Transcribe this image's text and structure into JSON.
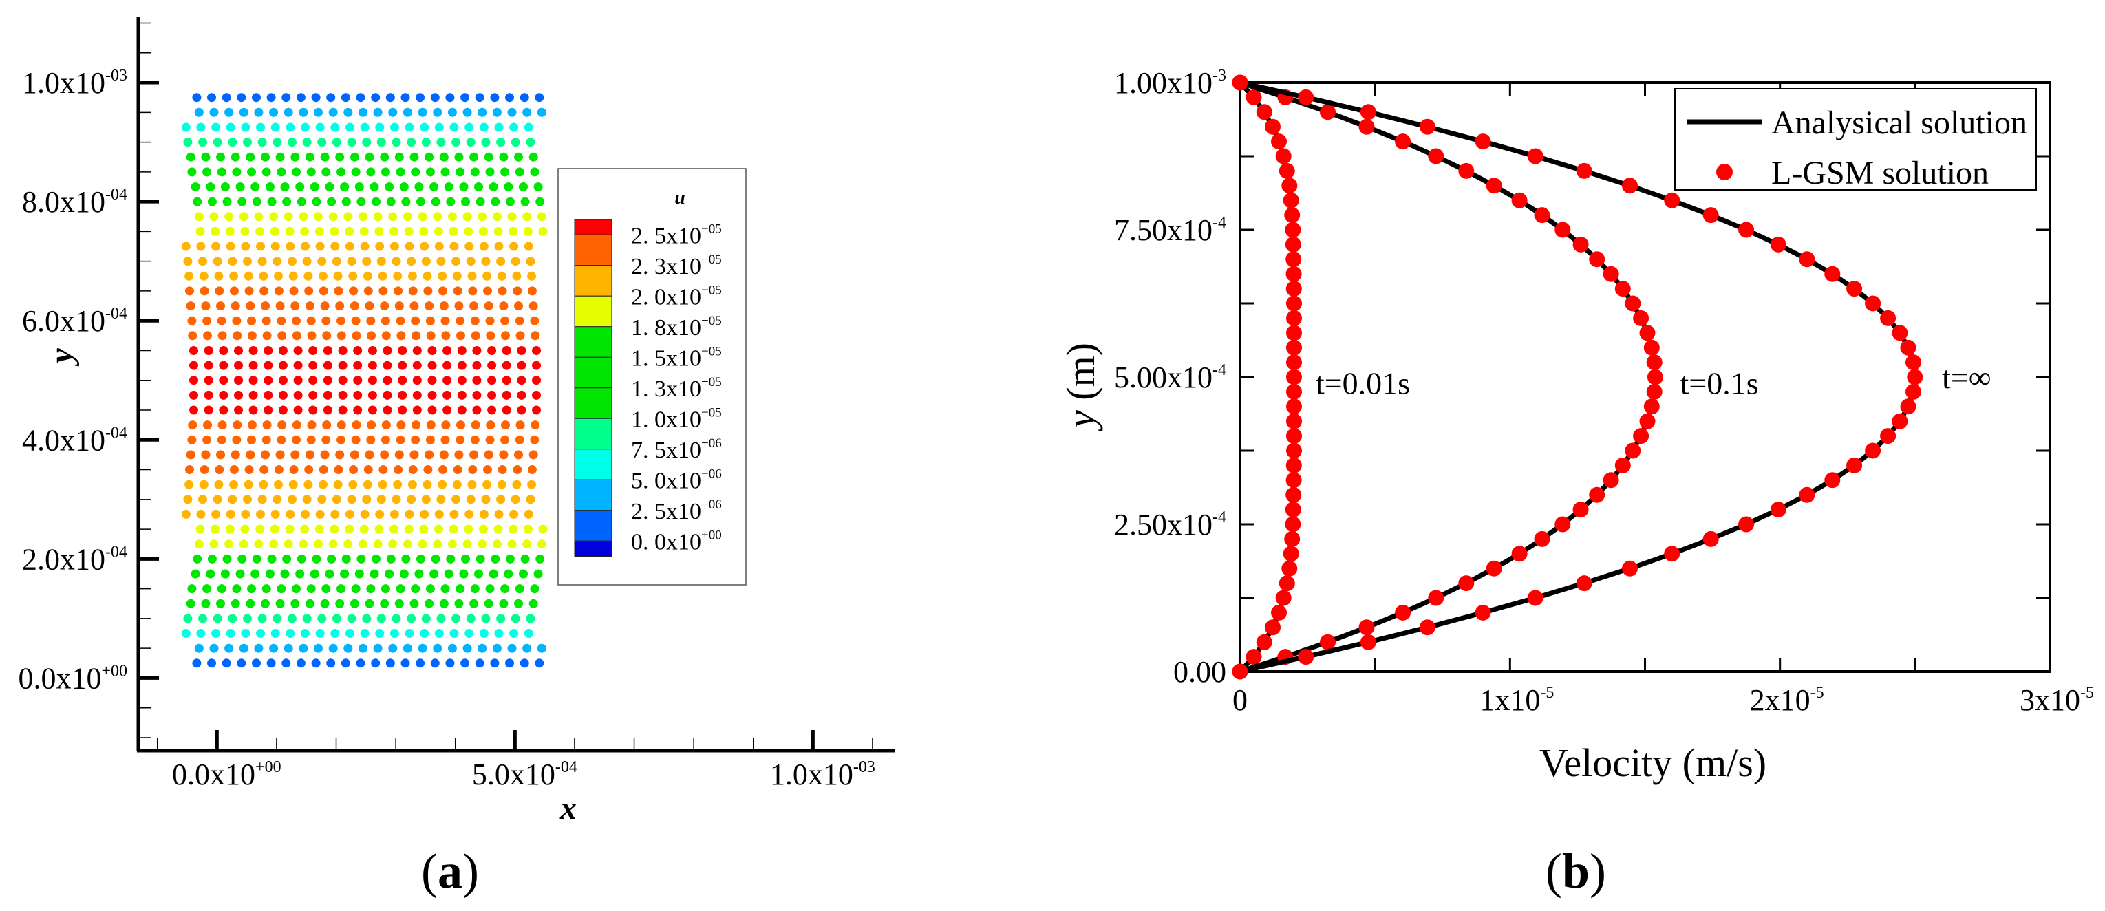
{
  "captions": {
    "a": {
      "open": "(",
      "label": "a",
      "close": ")"
    },
    "b": {
      "open": "(",
      "label": "b",
      "close": ")"
    }
  },
  "chart_data": [
    {
      "type": "scatter",
      "xlabel": "x",
      "ylabel": "y",
      "xlim": [
        -0.000132,
        0.001137
      ],
      "ylim": [
        -0.000122,
        0.001111
      ],
      "grid": false,
      "x_ticks": [
        {
          "value": 0,
          "base": "0.0x10",
          "exp": "+00"
        },
        {
          "value": 0.0005,
          "base": "5.0x10",
          "exp": "-04"
        },
        {
          "value": 0.001,
          "base": "1.0x10",
          "exp": "-03"
        }
      ],
      "x_minor_step": 0.0001,
      "y_ticks": [
        {
          "value": 0,
          "base": "0.0x10",
          "exp": "+00"
        },
        {
          "value": 0.0002,
          "base": "2.0x10",
          "exp": "-04"
        },
        {
          "value": 0.0004,
          "base": "4.0x10",
          "exp": "-04"
        },
        {
          "value": 0.0006,
          "base": "6.0x10",
          "exp": "-04"
        },
        {
          "value": 0.0008,
          "base": "8.0x10",
          "exp": "-04"
        },
        {
          "value": 0.001,
          "base": "1.0x10",
          "exp": "-03"
        }
      ],
      "y_minor_step": 5e-05,
      "legend": {
        "title": "u",
        "position": "right",
        "levels": [
          {
            "value": 2.5e-05,
            "base": "2. 5x10",
            "exp": "−05"
          },
          {
            "value": 2.25e-05,
            "base": "2. 3x10",
            "exp": "−05"
          },
          {
            "value": 2e-05,
            "base": "2. 0x10",
            "exp": "−05"
          },
          {
            "value": 1.75e-05,
            "base": "1. 8x10",
            "exp": "−05"
          },
          {
            "value": 1.5e-05,
            "base": "1. 5x10",
            "exp": "−05"
          },
          {
            "value": 1.25e-05,
            "base": "1. 3x10",
            "exp": "−05"
          },
          {
            "value": 1e-05,
            "base": "1. 0x10",
            "exp": "−05"
          },
          {
            "value": 7.5e-06,
            "base": "7. 5x10",
            "exp": "−06"
          },
          {
            "value": 5e-06,
            "base": "5. 0x10",
            "exp": "−06"
          },
          {
            "value": 2.5e-06,
            "base": "2. 5x10",
            "exp": "−06"
          },
          {
            "value": 0,
            "base": "0. 0x10",
            "exp": "+00"
          }
        ],
        "colors_bottom_to_top": [
          "#0000dc",
          "#0064ff",
          "#00b4ff",
          "#00ffe6",
          "#00ff8c",
          "#00e600",
          "#00e600",
          "#00e600",
          "#e6ff00",
          "#ffb400",
          "#ff6400",
          "#ff0000"
        ]
      },
      "points": {
        "dx": 2.5e-05,
        "columns": 24,
        "row_y": [
          2.5e-05,
          5e-05,
          7.5e-05,
          0.0001,
          0.000125,
          0.00015,
          0.000175,
          0.0002,
          0.000225,
          0.00025,
          0.000275,
          0.0003,
          0.000325,
          0.00035,
          0.000375,
          0.0004,
          0.000425,
          0.00045,
          0.000475,
          0.0005,
          0.000525,
          0.00055,
          0.000575,
          0.0006,
          0.000625,
          0.00065,
          0.000675,
          0.0007,
          0.000725,
          0.00075,
          0.000775,
          0.0008,
          0.000825,
          0.00085,
          0.000875,
          0.0009,
          0.000925,
          0.00095,
          0.000975
        ],
        "row_x_start": [
          -3.4e-05,
          -3e-05,
          -5.2e-05,
          -4.9e-05,
          -4.4e-05,
          -4.2e-05,
          -3.6e-05,
          -3.3e-05,
          -3e-05,
          -2.8e-05,
          -5.2e-05,
          -4.9e-05,
          -4.7e-05,
          -4.6e-05,
          -4.4e-05,
          -4.2e-05,
          -4.1e-05,
          -3.9e-05,
          -3.9e-05,
          -3.9e-05,
          -3.9e-05,
          -3.9e-05,
          -4.1e-05,
          -4.2e-05,
          -4.4e-05,
          -4.6e-05,
          -4.7e-05,
          -4.9e-05,
          -5.2e-05,
          -2.8e-05,
          -3e-05,
          -3.3e-05,
          -3.6e-05,
          -4.2e-05,
          -4.4e-05,
          -4.9e-05,
          -5.2e-05,
          -3e-05,
          -3.4e-05
        ],
        "row_level": [
          1,
          2,
          3,
          4,
          5,
          5,
          5,
          5,
          8,
          8,
          9,
          9,
          9,
          10,
          10,
          10,
          10,
          11,
          11,
          11,
          11,
          11,
          10,
          10,
          10,
          10,
          9,
          9,
          9,
          8,
          8,
          5,
          5,
          5,
          5,
          4,
          3,
          2,
          1
        ]
      }
    },
    {
      "type": "line",
      "xlabel": "Velocity (m/s)",
      "ylabel": {
        "var": "y",
        "unit": " (m)"
      },
      "xlim": [
        0,
        3e-05
      ],
      "ylim": [
        0,
        0.001
      ],
      "grid": false,
      "x_ticks": [
        {
          "value": 0,
          "base": "0",
          "exp": ""
        },
        {
          "value": 1e-05,
          "base": "1x10",
          "exp": "-5"
        },
        {
          "value": 2e-05,
          "base": "2x10",
          "exp": "-5"
        },
        {
          "value": 3e-05,
          "base": "3x10",
          "exp": "-5"
        }
      ],
      "x_minor_step": 5e-06,
      "y_ticks": [
        {
          "value": 0,
          "base": "0.00",
          "exp": ""
        },
        {
          "value": 0.00025,
          "base": "2.50x10",
          "exp": "-4"
        },
        {
          "value": 0.0005,
          "base": "5.00x10",
          "exp": "-4"
        },
        {
          "value": 0.00075,
          "base": "7.50x10",
          "exp": "-4"
        },
        {
          "value": 0.001,
          "base": "1.00x10",
          "exp": "-3"
        }
      ],
      "y_minor_step": 0.000125,
      "legend": {
        "position": "top-right",
        "entries": [
          {
            "label": "Analysical solution",
            "style": "line",
            "color": "#000000"
          },
          {
            "label": "L-GSM solution",
            "style": "marker",
            "color": "#ff0000"
          }
        ]
      },
      "y": [
        0,
        2.5e-05,
        5e-05,
        7.5e-05,
        0.0001,
        0.000125,
        0.00015,
        0.000175,
        0.0002,
        0.000225,
        0.00025,
        0.000275,
        0.0003,
        0.000325,
        0.00035,
        0.000375,
        0.0004,
        0.000425,
        0.00045,
        0.000475,
        0.0005,
        0.000525,
        0.00055,
        0.000575,
        0.0006,
        0.000625,
        0.00065,
        0.000675,
        0.0007,
        0.000725,
        0.00075,
        0.000775,
        0.0008,
        0.000825,
        0.00085,
        0.000875,
        0.0009,
        0.000925,
        0.00095,
        0.000975,
        0.001
      ],
      "series": [
        {
          "label": "t=0.01s",
          "label_at": {
            "x": 2.8e-06,
            "y": 0.00049
          },
          "x": [
            0,
            5.1e-07,
            9e-07,
            1.21e-06,
            1.44e-06,
            1.61e-06,
            1.74e-06,
            1.83e-06,
            1.89e-06,
            1.93e-06,
            1.96e-06,
            1.97e-06,
            1.98e-06,
            1.99e-06,
            1.995e-06,
            2e-06,
            2e-06,
            2e-06,
            2e-06,
            2e-06,
            2e-06,
            2e-06,
            2e-06,
            2e-06,
            2e-06,
            2e-06,
            1.995e-06,
            1.99e-06,
            1.98e-06,
            1.97e-06,
            1.96e-06,
            1.93e-06,
            1.89e-06,
            1.83e-06,
            1.74e-06,
            1.61e-06,
            1.44e-06,
            1.21e-06,
            9e-07,
            5.1e-07,
            0
          ]
        },
        {
          "label": "t=0.1s",
          "label_at": {
            "x": 1.63e-05,
            "y": 0.00049
          },
          "x": [
            0,
            1.68e-06,
            3.25e-06,
            4.69e-06,
            6.03e-06,
            7.26e-06,
            8.38e-06,
            9.41e-06,
            1.035e-05,
            1.119e-05,
            1.195e-05,
            1.262e-05,
            1.322e-05,
            1.374e-05,
            1.418e-05,
            1.455e-05,
            1.485e-05,
            1.509e-05,
            1.525e-05,
            1.535e-05,
            1.538e-05,
            1.535e-05,
            1.525e-05,
            1.509e-05,
            1.485e-05,
            1.455e-05,
            1.418e-05,
            1.374e-05,
            1.322e-05,
            1.262e-05,
            1.195e-05,
            1.119e-05,
            1.035e-05,
            9.41e-06,
            8.38e-06,
            7.26e-06,
            6.03e-06,
            4.69e-06,
            3.25e-06,
            1.68e-06,
            0
          ]
        },
        {
          "label": "t=∞",
          "label_at": {
            "x": 2.6e-05,
            "y": 0.0005
          },
          "x": [
            0,
            2.44e-06,
            4.75e-06,
            6.94e-06,
            9e-06,
            1.094e-05,
            1.275e-05,
            1.444e-05,
            1.6e-05,
            1.744e-05,
            1.875e-05,
            1.994e-05,
            2.1e-05,
            2.194e-05,
            2.275e-05,
            2.344e-05,
            2.4e-05,
            2.444e-05,
            2.475e-05,
            2.494e-05,
            2.5e-05,
            2.494e-05,
            2.475e-05,
            2.444e-05,
            2.4e-05,
            2.344e-05,
            2.275e-05,
            2.194e-05,
            2.1e-05,
            1.994e-05,
            1.875e-05,
            1.744e-05,
            1.6e-05,
            1.444e-05,
            1.275e-05,
            1.094e-05,
            9e-06,
            6.94e-06,
            4.75e-06,
            2.44e-06,
            0
          ]
        }
      ]
    }
  ]
}
